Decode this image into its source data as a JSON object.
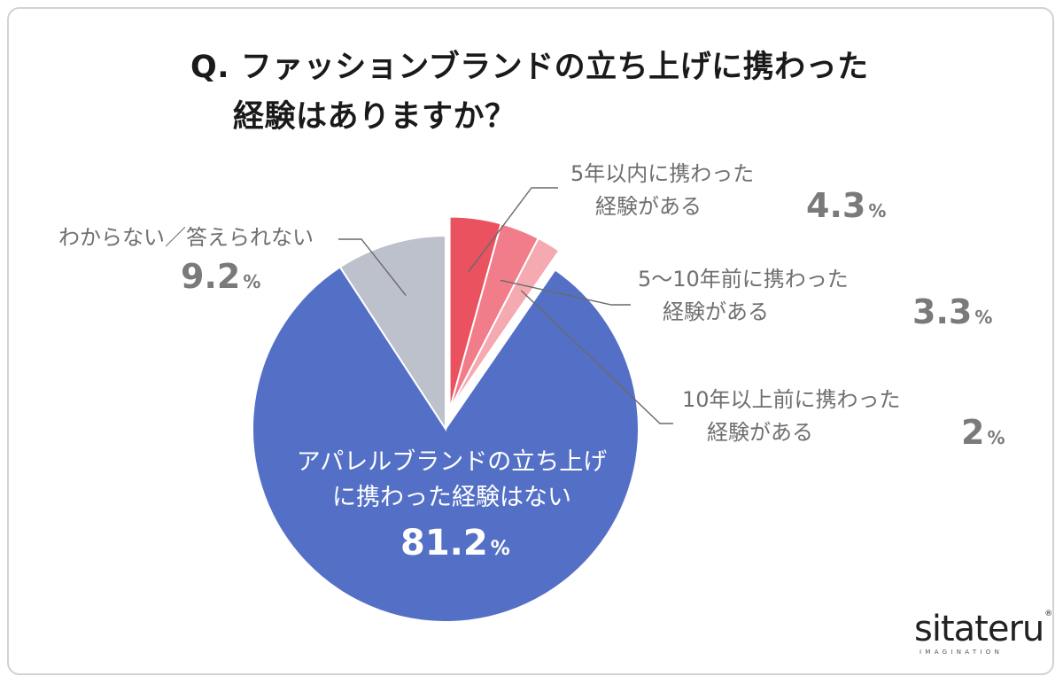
{
  "title": {
    "line1": "Q. ファッションブランドの立ち上げに携わった",
    "line2": "経験はありますか？"
  },
  "chart_data": {
    "type": "pie",
    "unit": "%",
    "slices": [
      {
        "label_line1": "5年以内に携わった",
        "label_line2": "経験がある",
        "value": 4.3,
        "value_text": "4.3",
        "color": "#e9525e",
        "exploded": true
      },
      {
        "label_line1": "5〜10年前に携わった",
        "label_line2": "経験がある",
        "value": 3.3,
        "value_text": "3.3",
        "color": "#f07d89",
        "exploded": true
      },
      {
        "label_line1": "10年以上前に携わった",
        "label_line2": "経験がある",
        "value": 2,
        "value_text": "2",
        "color": "#f5a9b1",
        "exploded": true
      },
      {
        "label_line1": "アパレルブランドの立ち上げ",
        "label_line2": "に携わった経験はない",
        "value": 81.2,
        "value_text": "81.2",
        "color": "#5470c6",
        "exploded": false
      },
      {
        "label_line1": "わからない／答えられない",
        "label_line2": "",
        "value": 9.2,
        "value_text": "9.2",
        "color": "#bdc1cb",
        "exploded": false
      }
    ]
  },
  "logo": {
    "word": "sitateru",
    "tagline": "IMAGINATION",
    "reg": "®"
  }
}
